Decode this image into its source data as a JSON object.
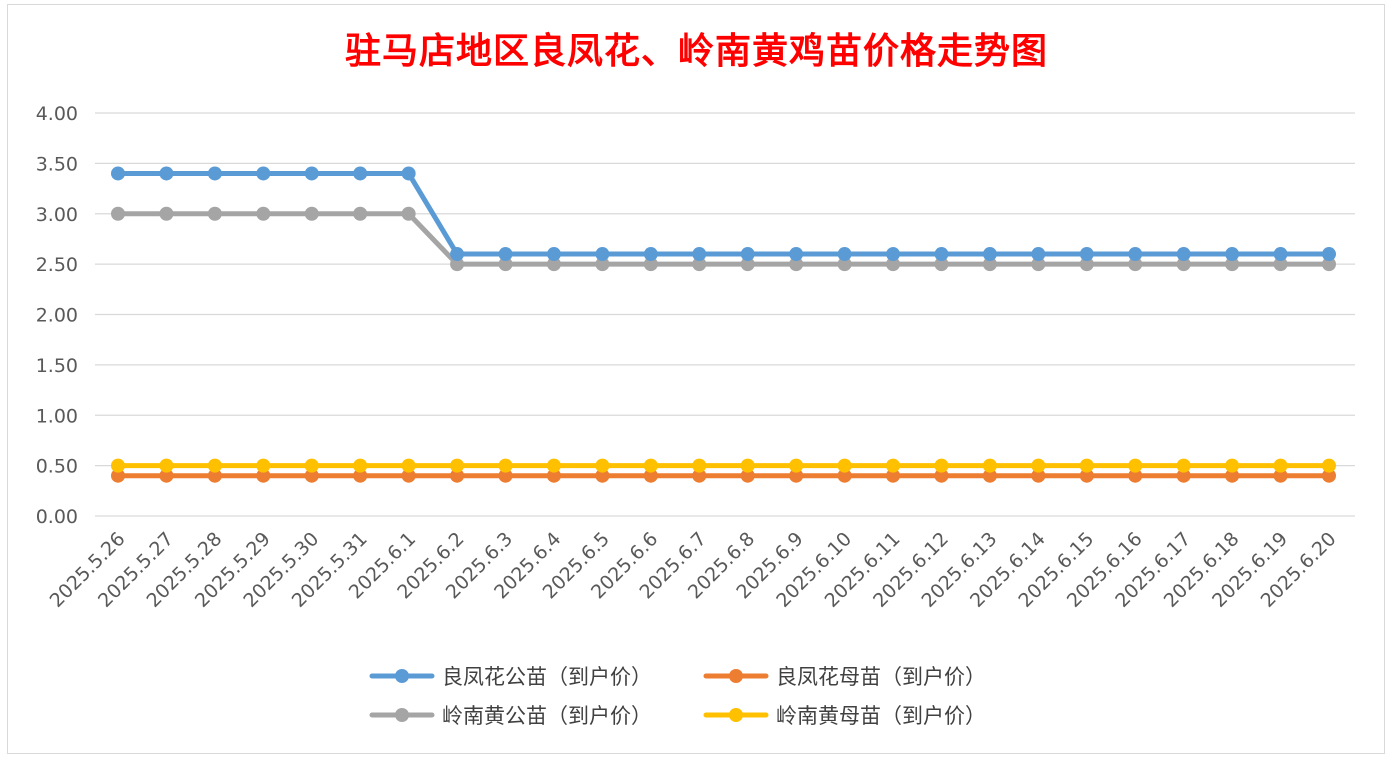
{
  "chart_data": {
    "type": "line",
    "title": "驻马店地区良凤花、岭南黄鸡苗价格走势图",
    "xlabel": "",
    "ylabel": "",
    "ylim": [
      0,
      4
    ],
    "yticks": [
      "0.00",
      "0.50",
      "1.00",
      "1.50",
      "2.00",
      "2.50",
      "3.00",
      "3.50",
      "4.00"
    ],
    "grid": true,
    "legend_position": "bottom",
    "categories": [
      "2025.5.26",
      "2025.5.27",
      "2025.5.28",
      "2025.5.29",
      "2025.5.30",
      "2025.5.31",
      "2025.6.1",
      "2025.6.2",
      "2025.6.3",
      "2025.6.4",
      "2025.6.5",
      "2025.6.6",
      "2025.6.7",
      "2025.6.8",
      "2025.6.9",
      "2025.6.10",
      "2025.6.11",
      "2025.6.12",
      "2025.6.13",
      "2025.6.14",
      "2025.6.15",
      "2025.6.16",
      "2025.6.17",
      "2025.6.18",
      "2025.6.19",
      "2025.6.20"
    ],
    "series": [
      {
        "name": "良凤花公苗（到户价）",
        "color": "#5b9bd5",
        "values": [
          3.4,
          3.4,
          3.4,
          3.4,
          3.4,
          3.4,
          3.4,
          2.6,
          2.6,
          2.6,
          2.6,
          2.6,
          2.6,
          2.6,
          2.6,
          2.6,
          2.6,
          2.6,
          2.6,
          2.6,
          2.6,
          2.6,
          2.6,
          2.6,
          2.6,
          2.6
        ]
      },
      {
        "name": "良凤花母苗（到户价）",
        "color": "#ed7d31",
        "values": [
          0.4,
          0.4,
          0.4,
          0.4,
          0.4,
          0.4,
          0.4,
          0.4,
          0.4,
          0.4,
          0.4,
          0.4,
          0.4,
          0.4,
          0.4,
          0.4,
          0.4,
          0.4,
          0.4,
          0.4,
          0.4,
          0.4,
          0.4,
          0.4,
          0.4,
          0.4
        ]
      },
      {
        "name": "岭南黄公苗（到户价）",
        "color": "#a5a5a5",
        "values": [
          3.0,
          3.0,
          3.0,
          3.0,
          3.0,
          3.0,
          3.0,
          2.5,
          2.5,
          2.5,
          2.5,
          2.5,
          2.5,
          2.5,
          2.5,
          2.5,
          2.5,
          2.5,
          2.5,
          2.5,
          2.5,
          2.5,
          2.5,
          2.5,
          2.5,
          2.5
        ]
      },
      {
        "name": "岭南黄母苗（到户价）",
        "color": "#ffc000",
        "values": [
          0.5,
          0.5,
          0.5,
          0.5,
          0.5,
          0.5,
          0.5,
          0.5,
          0.5,
          0.5,
          0.5,
          0.5,
          0.5,
          0.5,
          0.5,
          0.5,
          0.5,
          0.5,
          0.5,
          0.5,
          0.5,
          0.5,
          0.5,
          0.5,
          0.5,
          0.5
        ]
      }
    ]
  }
}
